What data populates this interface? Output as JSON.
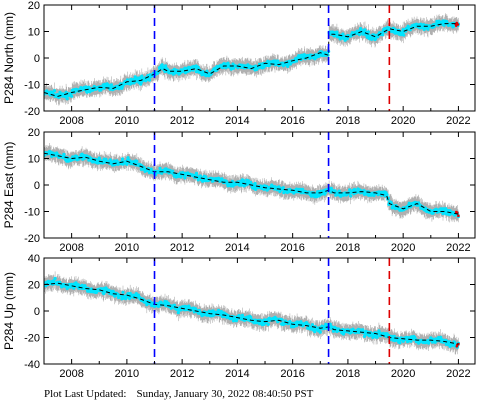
{
  "station": "P284",
  "footer": {
    "label": "Plot Last Updated:",
    "timestamp": "Sunday, January 30, 2022 08:40:50 PST"
  },
  "colors": {
    "data_points": "#00e5ff",
    "error_bars": "#b0b0b0",
    "model_line": "#000000",
    "recent_points": "#e00000",
    "event_line_blue": "#0000ff",
    "event_line_red": "#dd0000"
  },
  "chart_data": [
    {
      "type": "scatter",
      "ylabel": "P284 North (mm)",
      "xlim": [
        2007.0,
        2022.6
      ],
      "ylim": [
        -20,
        20
      ],
      "xticks": [
        2008,
        2010,
        2012,
        2014,
        2016,
        2018,
        2020,
        2022
      ],
      "yticks": [
        -20,
        -10,
        0,
        10,
        20
      ],
      "grid": false,
      "event_lines": [
        {
          "x": 2011.0,
          "color": "blue"
        },
        {
          "x": 2017.3,
          "color": "blue"
        },
        {
          "x": 2019.5,
          "color": "red"
        }
      ],
      "series": [
        {
          "x": [
            2007.0,
            2007.5,
            2008.0,
            2008.5,
            2009.0,
            2009.5,
            2010.0,
            2010.5,
            2011.0,
            2011.3,
            2011.5,
            2012.0,
            2012.5,
            2013.0,
            2013.5,
            2014.0,
            2014.5,
            2015.0,
            2015.5,
            2016.0,
            2016.5,
            2017.0,
            2017.3,
            2017.31,
            2017.5,
            2018.0,
            2018.5,
            2019.0,
            2019.5,
            2020.0,
            2020.5,
            2021.0,
            2021.5,
            2022.0
          ],
          "y": [
            -13,
            -14.5,
            -13,
            -12,
            -11,
            -11.5,
            -9,
            -8.5,
            -6,
            -4,
            -5,
            -5,
            -4,
            -6,
            -3,
            -3,
            -4,
            -2,
            -2.5,
            -1,
            0,
            2,
            1,
            9,
            9,
            8,
            10,
            8,
            11,
            10,
            12,
            12,
            13,
            13
          ]
        }
      ]
    },
    {
      "type": "scatter",
      "ylabel": "P284 East (mm)",
      "xlim": [
        2007.0,
        2022.6
      ],
      "ylim": [
        -20,
        20
      ],
      "xticks": [
        2008,
        2010,
        2012,
        2014,
        2016,
        2018,
        2020,
        2022
      ],
      "yticks": [
        -20,
        -10,
        0,
        10,
        20
      ],
      "grid": false,
      "event_lines": [
        {
          "x": 2011.0,
          "color": "blue"
        },
        {
          "x": 2017.3,
          "color": "blue"
        }
      ],
      "series": [
        {
          "x": [
            2007.0,
            2007.5,
            2008.0,
            2008.5,
            2009.0,
            2009.5,
            2010.0,
            2010.5,
            2011.0,
            2011.5,
            2012.0,
            2012.5,
            2013.0,
            2013.5,
            2014.0,
            2014.5,
            2015.0,
            2015.5,
            2016.0,
            2016.5,
            2017.0,
            2017.3,
            2017.31,
            2017.5,
            2018.0,
            2018.5,
            2019.0,
            2019.4,
            2019.5,
            2020.0,
            2020.5,
            2021.0,
            2021.5,
            2022.0
          ],
          "y": [
            12,
            11,
            10,
            10.5,
            9,
            8,
            9,
            7,
            5,
            5,
            4,
            3,
            2,
            1,
            1,
            0,
            -1,
            -1.5,
            -2,
            -3,
            -3,
            -2,
            -2,
            -3,
            -3,
            -2.5,
            -3,
            -4,
            -7,
            -9,
            -7,
            -10,
            -10,
            -11
          ]
        }
      ]
    },
    {
      "type": "scatter",
      "ylabel": "P284 Up (mm)",
      "xlim": [
        2007.0,
        2022.6
      ],
      "ylim": [
        -40,
        40
      ],
      "xticks": [
        2008,
        2010,
        2012,
        2014,
        2016,
        2018,
        2020,
        2022
      ],
      "yticks": [
        -40,
        -20,
        0,
        20,
        40
      ],
      "grid": false,
      "event_lines": [
        {
          "x": 2011.0,
          "color": "blue"
        },
        {
          "x": 2017.3,
          "color": "blue"
        },
        {
          "x": 2019.5,
          "color": "red"
        }
      ],
      "series": [
        {
          "x": [
            2007.0,
            2007.5,
            2008.0,
            2008.5,
            2009.0,
            2009.5,
            2010.0,
            2010.5,
            2011.0,
            2011.5,
            2012.0,
            2012.5,
            2013.0,
            2013.5,
            2014.0,
            2014.5,
            2015.0,
            2015.5,
            2016.0,
            2016.5,
            2017.0,
            2017.3,
            2017.5,
            2018.0,
            2018.5,
            2019.0,
            2019.5,
            2020.0,
            2020.5,
            2021.0,
            2021.5,
            2022.0
          ],
          "y": [
            20,
            21,
            19,
            17,
            16,
            13,
            12,
            9,
            5,
            4,
            2,
            0,
            -2,
            -3,
            -5,
            -7,
            -8,
            -7,
            -10,
            -11,
            -13,
            -12,
            -14,
            -15,
            -16,
            -17,
            -20,
            -21,
            -22,
            -22,
            -23,
            -25
          ]
        }
      ]
    }
  ]
}
